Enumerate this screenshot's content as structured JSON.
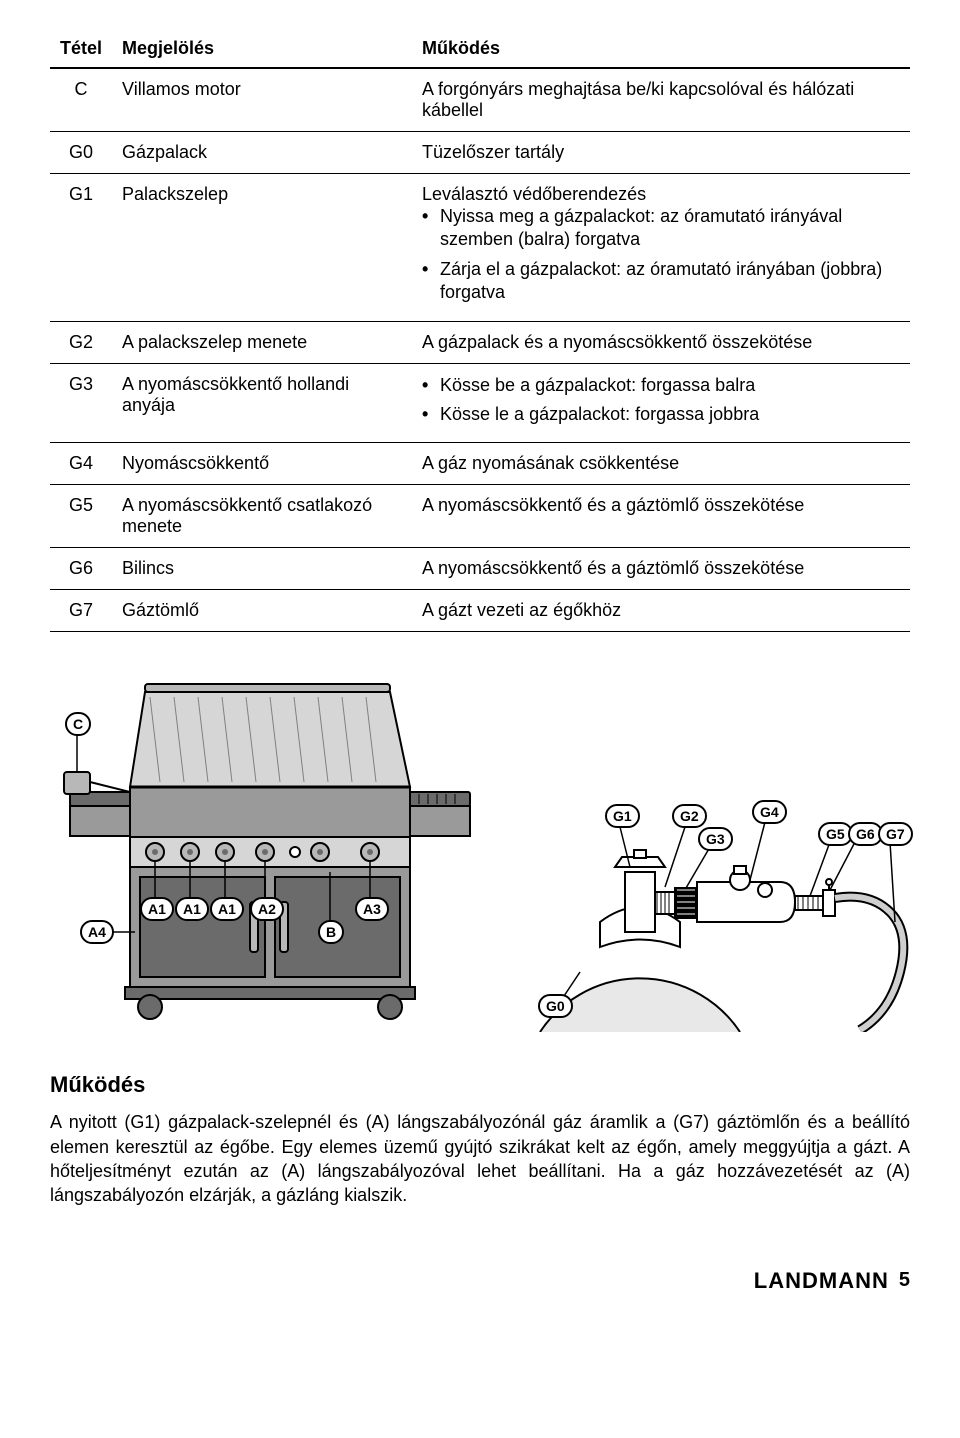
{
  "table": {
    "headers": {
      "id": "Tétel",
      "label": "Megjelölés",
      "func": "Működés"
    },
    "rows": [
      {
        "id": "C",
        "label": "Villamos motor",
        "func_text": "A forgónyárs meghajtása be/ki kapcsolóval és hálózati kábellel"
      },
      {
        "id": "G0",
        "label": "Gázpalack",
        "func_text": "Tüzelőszer tartály"
      },
      {
        "id": "G1",
        "label": "Palackszelep",
        "func_text": "Leválasztó védőberendezés",
        "func_bullets": [
          "Nyissa meg a gázpalackot: az óramutató irányával szemben (balra) forgatva",
          "Zárja el a gázpalackot: az óramutató irányában (jobbra) forgatva"
        ]
      },
      {
        "id": "G2",
        "label": "A palackszelep menete",
        "func_text": "A gázpalack és a nyomáscsökkentő összekötése"
      },
      {
        "id": "G3",
        "label": "A nyomáscsökkentő hollandi anyája",
        "func_bullets": [
          "Kösse be a gázpalackot: forgassa balra",
          "Kösse le a gázpalackot: forgassa jobbra"
        ]
      },
      {
        "id": "G4",
        "label": "Nyomáscsökkentő",
        "func_text": "A gáz nyomásának csökkentése"
      },
      {
        "id": "G5",
        "label": "A nyomáscsökkentő csatlakozó menete",
        "func_text": "A nyomáscsökkentő és a gáztömlő összekötése"
      },
      {
        "id": "G6",
        "label": "Bilincs",
        "func_text": "A nyomáscsökkentő és a gáztömlő összekötése"
      },
      {
        "id": "G7",
        "label": "Gáztömlő",
        "func_text": "A gázt vezeti az égőkhöz"
      }
    ]
  },
  "grill_callouts": [
    "C",
    "A1",
    "A1",
    "A1",
    "A2",
    "A3",
    "A4",
    "B"
  ],
  "gas_callouts": [
    "G0",
    "G1",
    "G2",
    "G3",
    "G4",
    "G5",
    "G6",
    "G7"
  ],
  "section_title": "Működés",
  "section_body": "A nyitott (G1) gázpalack-szelepnél és (A) lángszabályozónál gáz áramlik a (G7) gáztömlőn és a beállító elemen keresztül az égőbe. Egy elemes üzemű gyújtó szikrákat kelt az égőn, amely meggyújtja a gázt. A hőteljesítményt ezután az (A) lángszabályozóval lehet beállítani. Ha a gáz hozzávezetését az (A) lángszabályozón elzárják, a gázláng kialszik.",
  "footer": {
    "brand": "LANDMANN",
    "page": "5"
  },
  "colors": {
    "line": "#000000",
    "grill_body": "#9a9a9a",
    "grill_dark": "#6b6b6b",
    "grill_light": "#d6d6d6",
    "metal": "#b8b8b8",
    "metal_dark": "#808080",
    "bg": "#ffffff",
    "tank": "#e8e8e8",
    "hose": "#cfcfcf"
  },
  "grill_style": {
    "stroke_width": 2
  },
  "gas_style": {
    "stroke_width": 2
  }
}
